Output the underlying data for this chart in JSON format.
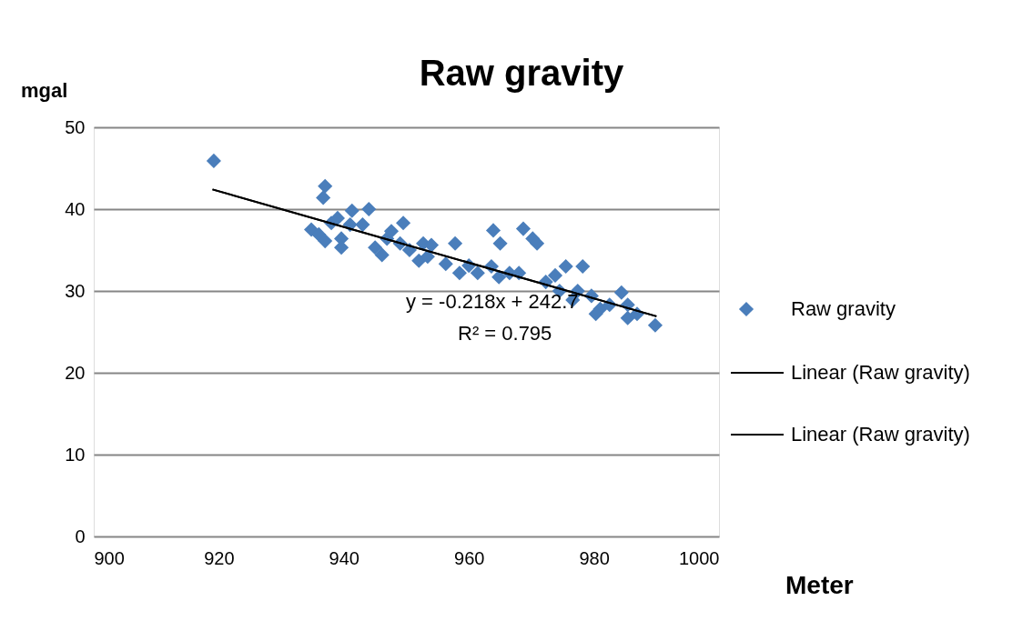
{
  "chart_data": {
    "type": "scatter",
    "title": "Raw gravity",
    "xlabel": "Meter",
    "ylabel": "mgal",
    "xlim": [
      900,
      1000
    ],
    "xticks": [
      900,
      920,
      940,
      960,
      980,
      1000
    ],
    "ylim": [
      0,
      50
    ],
    "yticks": [
      0,
      10,
      20,
      30,
      40,
      50
    ],
    "grid": "y",
    "legend": "right",
    "annotations": [
      "y = -0.218x + 242.7",
      "R² = 0.795"
    ],
    "series": [
      {
        "name": "Raw gravity",
        "marker": "diamond",
        "color": "#4a7ebb",
        "x": [
          919.2,
          937,
          936.7,
          934.8,
          936,
          937,
          938,
          939.6,
          939.6,
          941,
          941.3,
          939,
          943,
          944,
          945,
          946.1,
          946.9,
          947.6,
          949,
          949.5,
          950.5,
          952,
          952.7,
          954,
          953.4,
          956.3,
          957.8,
          958.5,
          960,
          961.4,
          963.6,
          963.9,
          965,
          964.8,
          966.5,
          968.7,
          970.2,
          970.9,
          968,
          972.3,
          973.8,
          974.5,
          975.5,
          978.2,
          977.4,
          979.6,
          981,
          982.5,
          984.4,
          985.4,
          986.9,
          989.8,
          980.3,
          976.6,
          985.4
        ],
        "values": [
          45.9,
          42.8,
          41.4,
          37.5,
          36.9,
          36.1,
          38.3,
          36.4,
          35.3,
          38.1,
          39.8,
          38.9,
          38.1,
          40,
          35.3,
          34.4,
          36.4,
          37.3,
          35.8,
          38.3,
          35,
          33.7,
          35.8,
          35.6,
          34.2,
          33.3,
          35.8,
          32.2,
          33.1,
          32.2,
          33,
          37.4,
          35.8,
          31.7,
          32.2,
          37.6,
          36.4,
          35.8,
          32.2,
          31.1,
          31.9,
          30,
          33,
          33,
          30,
          29.4,
          27.8,
          28.3,
          29.8,
          26.7,
          27.2,
          25.8,
          27.2,
          28.9,
          28.3
        ]
      },
      {
        "name": "Linear (Raw gravity)",
        "type": "line",
        "color": "#000000",
        "x": [
          919,
          990
        ],
        "values": [
          42.4,
          26.9
        ]
      },
      {
        "name": "Linear (Raw gravity)",
        "type": "line",
        "color": "#000000",
        "x": [
          919,
          990
        ],
        "values": [
          42.4,
          26.9
        ]
      }
    ]
  }
}
